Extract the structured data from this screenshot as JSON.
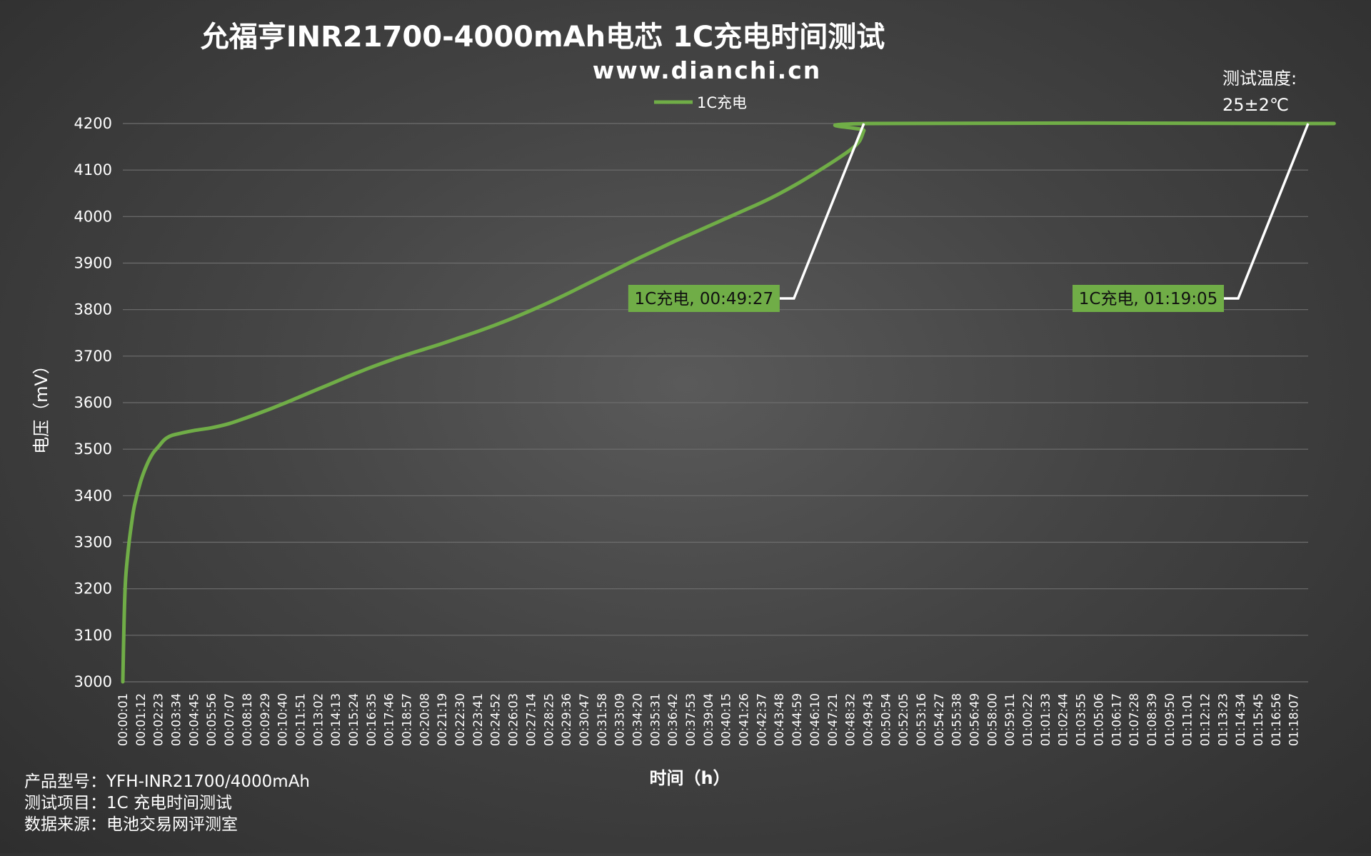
{
  "chart_data": {
    "type": "line",
    "title": "允福亨INR21700-4000mAh电芯 1C充电时间测试",
    "subtitle": "www.dianchi.cn",
    "xlabel": "时间（h）",
    "ylabel": "电压（mV）",
    "ylim": [
      3000,
      4200
    ],
    "y_ticks": [
      3000,
      3100,
      3200,
      3300,
      3400,
      3500,
      3600,
      3700,
      3800,
      3900,
      4000,
      4100,
      4200
    ],
    "grid": "horizontal",
    "legend": "top-center",
    "x_ticks": [
      "00:00:01",
      "00:01:12",
      "00:02:23",
      "00:03:34",
      "00:04:45",
      "00:05:56",
      "00:07:07",
      "00:08:18",
      "00:09:29",
      "00:10:40",
      "00:11:51",
      "00:13:02",
      "00:14:13",
      "00:15:24",
      "00:16:35",
      "00:17:46",
      "00:18:57",
      "00:20:08",
      "00:21:19",
      "00:22:30",
      "00:23:41",
      "00:24:52",
      "00:26:03",
      "00:27:14",
      "00:28:25",
      "00:29:36",
      "00:30:47",
      "00:31:58",
      "00:33:09",
      "00:34:20",
      "00:35:31",
      "00:36:42",
      "00:37:53",
      "00:39:04",
      "00:40:15",
      "00:41:26",
      "00:42:37",
      "00:43:48",
      "00:44:59",
      "00:46:10",
      "00:47:21",
      "00:48:32",
      "00:49:43",
      "00:50:54",
      "00:52:05",
      "00:53:16",
      "00:54:27",
      "00:55:38",
      "00:56:49",
      "00:58:00",
      "00:59:11",
      "01:00:22",
      "01:01:33",
      "01:02:44",
      "01:03:55",
      "01:05:06",
      "01:06:17",
      "01:07:28",
      "01:08:39",
      "01:09:50",
      "01:11:01",
      "01:12:12",
      "01:13:23",
      "01:14:34",
      "01:15:45",
      "01:16:56",
      "01:18:07"
    ],
    "series": [
      {
        "name": "1C充电",
        "color": "#70ad47",
        "points": [
          [
            "00:00:01",
            3000
          ],
          [
            "00:00:06",
            3130
          ],
          [
            "00:00:12",
            3220
          ],
          [
            "00:00:24",
            3290
          ],
          [
            "00:00:36",
            3340
          ],
          [
            "00:00:48",
            3380
          ],
          [
            "00:01:12",
            3430
          ],
          [
            "00:01:36",
            3465
          ],
          [
            "00:02:00",
            3490
          ],
          [
            "00:02:23",
            3505
          ],
          [
            "00:02:47",
            3520
          ],
          [
            "00:03:10",
            3528
          ],
          [
            "00:03:34",
            3532
          ],
          [
            "00:04:45",
            3540
          ],
          [
            "00:05:56",
            3546
          ],
          [
            "00:07:07",
            3555
          ],
          [
            "00:08:18",
            3568
          ],
          [
            "00:09:29",
            3582
          ],
          [
            "00:10:40",
            3597
          ],
          [
            "00:11:51",
            3613
          ],
          [
            "00:13:02",
            3629
          ],
          [
            "00:14:13",
            3645
          ],
          [
            "00:15:24",
            3661
          ],
          [
            "00:16:35",
            3676
          ],
          [
            "00:17:46",
            3690
          ],
          [
            "00:18:57",
            3703
          ],
          [
            "00:20:08",
            3715
          ],
          [
            "00:21:19",
            3727
          ],
          [
            "00:22:30",
            3740
          ],
          [
            "00:23:41",
            3753
          ],
          [
            "00:24:52",
            3767
          ],
          [
            "00:26:03",
            3782
          ],
          [
            "00:27:14",
            3798
          ],
          [
            "00:28:25",
            3815
          ],
          [
            "00:29:36",
            3833
          ],
          [
            "00:30:47",
            3852
          ],
          [
            "00:31:58",
            3871
          ],
          [
            "00:33:09",
            3890
          ],
          [
            "00:34:20",
            3909
          ],
          [
            "00:35:31",
            3927
          ],
          [
            "00:36:42",
            3945
          ],
          [
            "00:37:53",
            3962
          ],
          [
            "00:39:04",
            3979
          ],
          [
            "00:40:15",
            3996
          ],
          [
            "00:41:26",
            4013
          ],
          [
            "00:42:37",
            4030
          ],
          [
            "00:43:48",
            4049
          ],
          [
            "00:44:59",
            4070
          ],
          [
            "00:46:10",
            4093
          ],
          [
            "00:47:21",
            4117
          ],
          [
            "00:48:32",
            4143
          ],
          [
            "00:49:09",
            4162
          ],
          [
            "00:49:27",
            4185
          ],
          [
            "00:49:43",
            4200
          ],
          [
            "01:18:30",
            4200
          ],
          [
            "01:19:05",
            4200
          ]
        ]
      }
    ],
    "annotations": [
      {
        "label": "1C充电, 00:49:27",
        "time": "00:49:27"
      },
      {
        "label": "1C充电, 01:19:05",
        "time": "01:19:05"
      }
    ]
  },
  "note": {
    "temp_label": "测试温度:",
    "temp_value": "25±2℃"
  },
  "info": {
    "line1": "产品型号：YFH-INR21700/4000mAh",
    "line2": "测试项目：1C 充电时间测试",
    "line3": "数据来源：电池交易网评测室"
  },
  "colors": {
    "line": "#70ad47",
    "label_bg": "#70ad47",
    "leader": "#ffffff",
    "grid": "#6e6e6e",
    "text": "#ffffff"
  }
}
